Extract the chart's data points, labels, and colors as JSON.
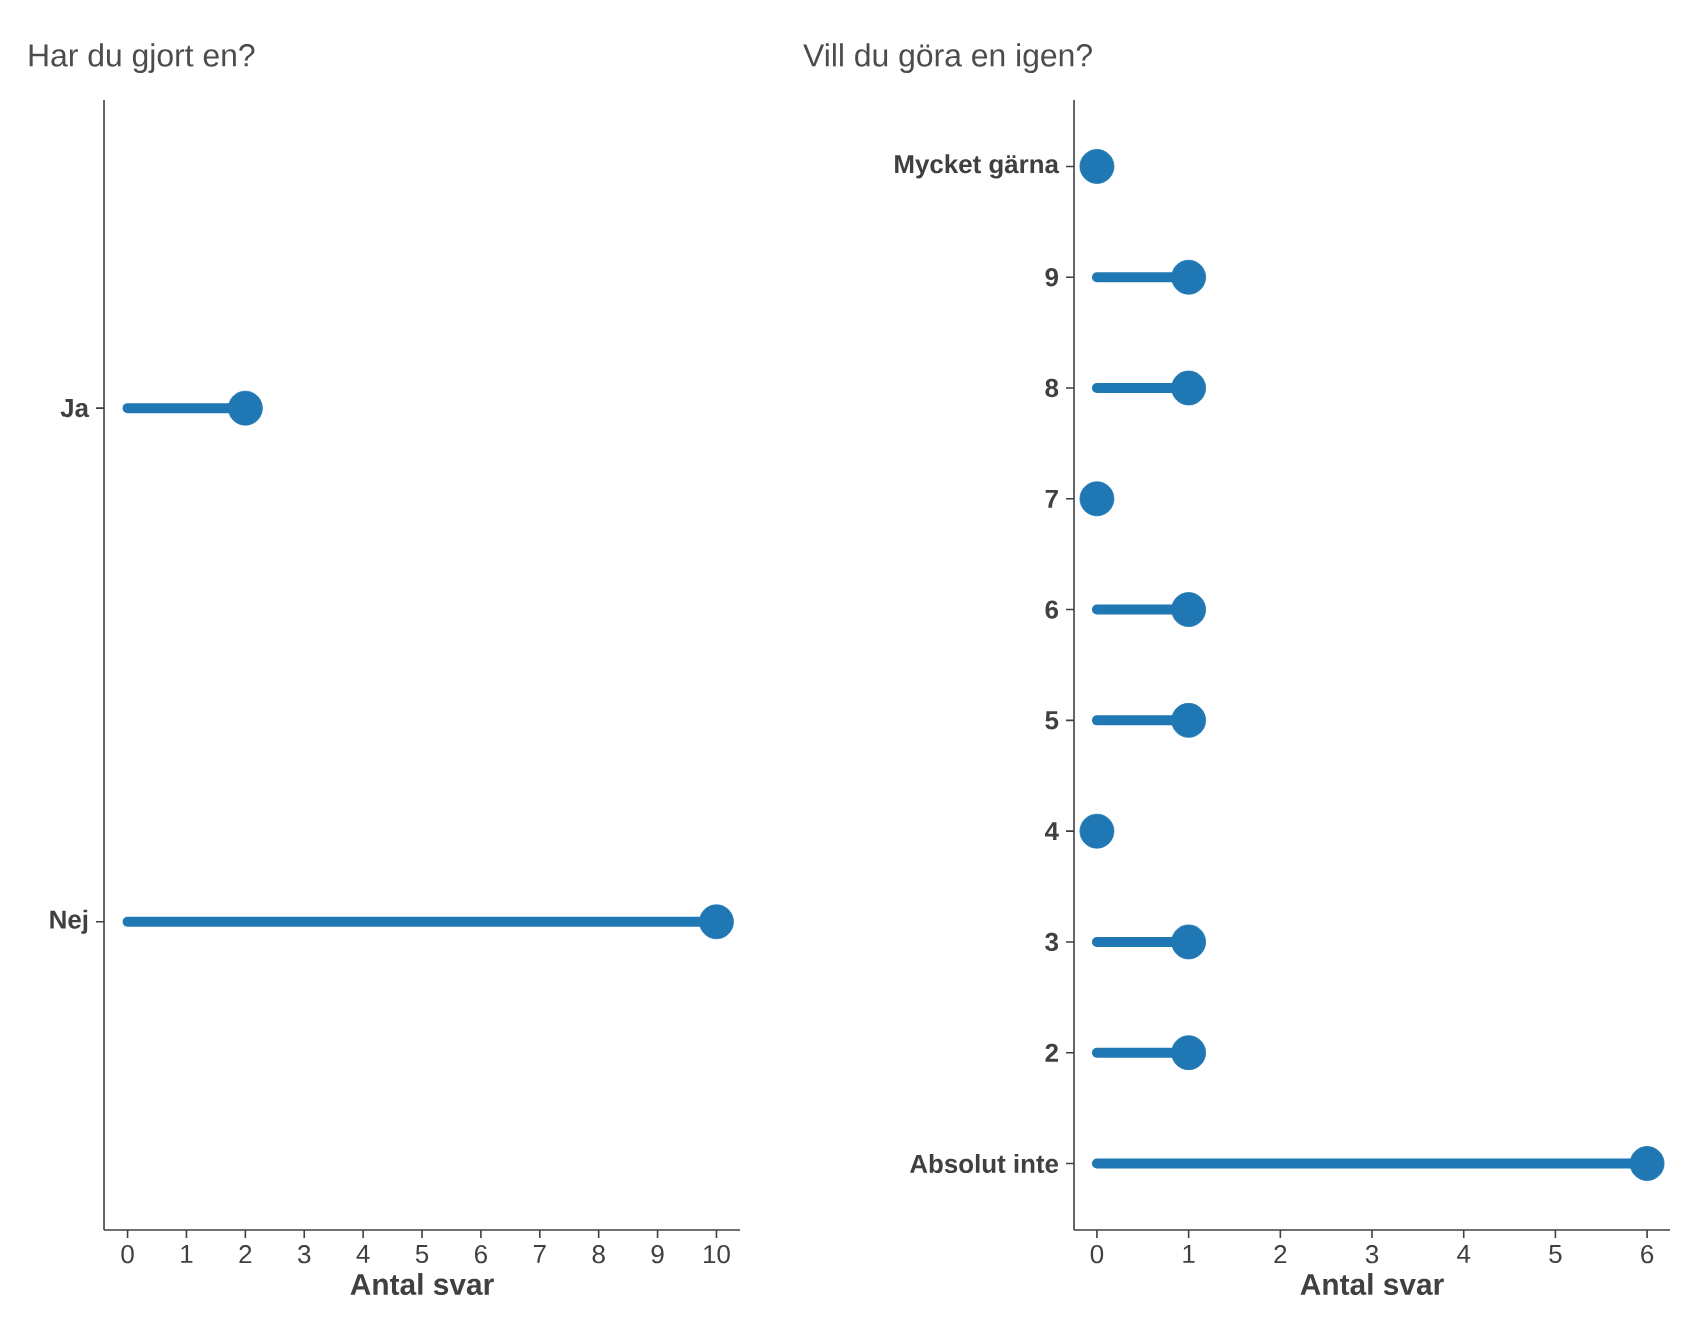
{
  "chart_data": [
    {
      "type": "lollipop",
      "orientation": "horizontal",
      "title": "Har du gjort en?",
      "xlabel": "Antal svar",
      "categories": [
        "Ja",
        "Nej"
      ],
      "values": [
        2,
        10
      ],
      "color": "#1f77b4",
      "xlim": [
        -0.4,
        10.4
      ],
      "xticks": [
        0,
        1,
        2,
        3,
        4,
        5,
        6,
        7,
        8,
        9,
        10
      ]
    },
    {
      "type": "lollipop",
      "orientation": "horizontal",
      "title": "Vill du göra en igen?",
      "xlabel": "Antal svar",
      "categories": [
        "Mycket gärna",
        "9",
        "8",
        "7",
        "6",
        "5",
        "4",
        "3",
        "2",
        "Absolut inte"
      ],
      "values": [
        0,
        1,
        1,
        0,
        1,
        1,
        0,
        1,
        1,
        6
      ],
      "color": "#1f77b4",
      "xlim": [
        -0.25,
        6.25
      ],
      "xticks": [
        0,
        1,
        2,
        3,
        4,
        5,
        6
      ]
    }
  ]
}
